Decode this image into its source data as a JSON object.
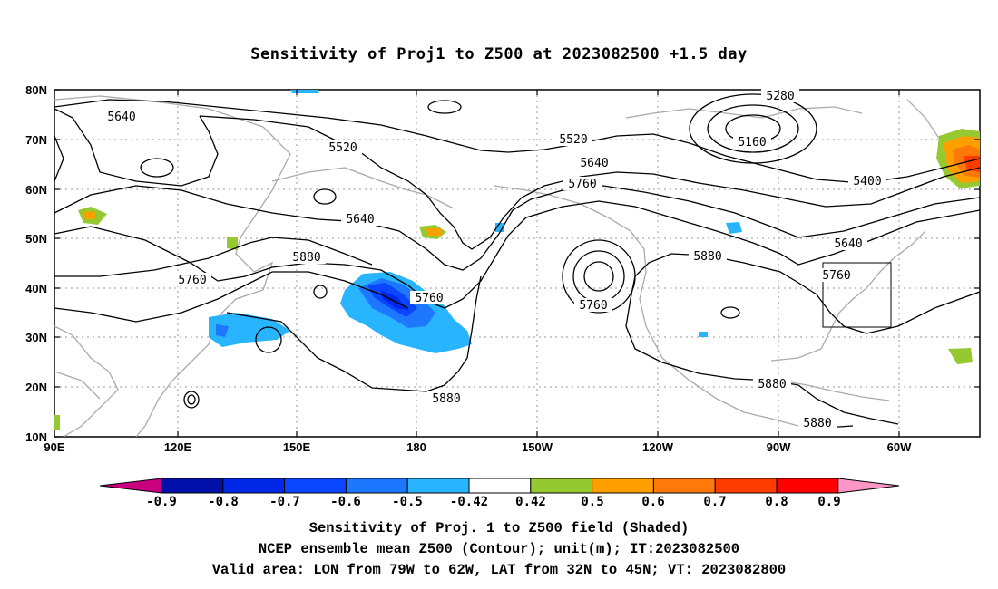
{
  "title": "Sensitivity of Proj1 to Z500 at 2023082500 +1.5 day",
  "axes": {
    "lat_labels": [
      "80N",
      "70N",
      "60N",
      "50N",
      "40N",
      "30N",
      "20N",
      "10N"
    ],
    "lon_labels": [
      "90E",
      "120E",
      "150E",
      "180",
      "150W",
      "120W",
      "90W",
      "60W"
    ]
  },
  "contour_labels": [
    "5280",
    "5160",
    "5400",
    "5520",
    "5520",
    "5640",
    "5640",
    "5640",
    "5640",
    "5760",
    "5760",
    "5760",
    "5760",
    "5760",
    "5880",
    "5880",
    "5880",
    "5880",
    "5880"
  ],
  "colorbar": {
    "labels": [
      "-0.9",
      "-0.8",
      "-0.7",
      "-0.6",
      "-0.5",
      "-0.42",
      "0.42",
      "0.5",
      "0.6",
      "0.7",
      "0.8",
      "0.9"
    ],
    "colors": [
      "#c8007d",
      "#0010a8",
      "#0028e6",
      "#0a46ff",
      "#1e78ff",
      "#28b4ff",
      "#ffffff",
      "#96c832",
      "#ffa000",
      "#ff780a",
      "#ff3c00",
      "#ff0000",
      "#ff96c8"
    ]
  },
  "captions": {
    "line1": "Sensitivity of Proj. 1 to Z500 field (Shaded)",
    "line2": "NCEP ensemble mean Z500 (Contour); unit(m); IT:2023082500",
    "line3": "Valid area: LON from 79W to 62W, LAT from 32N to 45N; VT: 2023082800"
  }
}
